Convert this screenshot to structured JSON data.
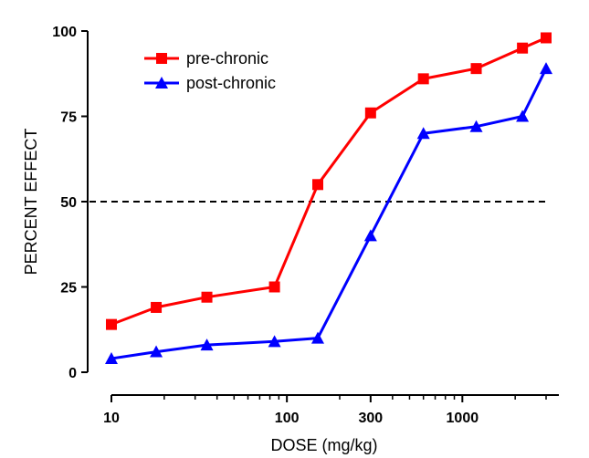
{
  "chart_data": {
    "type": "line",
    "title": "",
    "xlabel": "DOSE (mg/kg)",
    "ylabel": "PERCENT EFFECT",
    "xscale": "log",
    "xlim": [
      10,
      3000
    ],
    "ylim": [
      0,
      100
    ],
    "xticks": [
      {
        "value": 10,
        "label": "10"
      },
      {
        "value": 100,
        "label": "100"
      },
      {
        "value": 300,
        "label": "300"
      },
      {
        "value": 1000,
        "label": "1000"
      }
    ],
    "yticks": [
      {
        "value": 0,
        "label": "0"
      },
      {
        "value": 25,
        "label": "25"
      },
      {
        "value": 50,
        "label": "50"
      },
      {
        "value": 75,
        "label": "75"
      },
      {
        "value": 100,
        "label": "100"
      }
    ],
    "reference_line": {
      "y": 50,
      "style": "dashed"
    },
    "grid": false,
    "legend_position": "top-left",
    "series": [
      {
        "name": "pre-chronic",
        "color": "#ff0000",
        "marker": "square",
        "x": [
          10,
          18,
          35,
          85,
          150,
          300,
          600,
          1200,
          2200,
          3000
        ],
        "y": [
          14,
          19,
          22,
          25,
          55,
          76,
          86,
          89,
          95,
          98
        ]
      },
      {
        "name": "post-chronic",
        "color": "#0000ff",
        "marker": "triangle",
        "x": [
          10,
          18,
          35,
          85,
          150,
          300,
          600,
          1200,
          2200,
          3000
        ],
        "y": [
          4,
          6,
          8,
          9,
          10,
          40,
          70,
          72,
          75,
          89
        ]
      }
    ]
  }
}
